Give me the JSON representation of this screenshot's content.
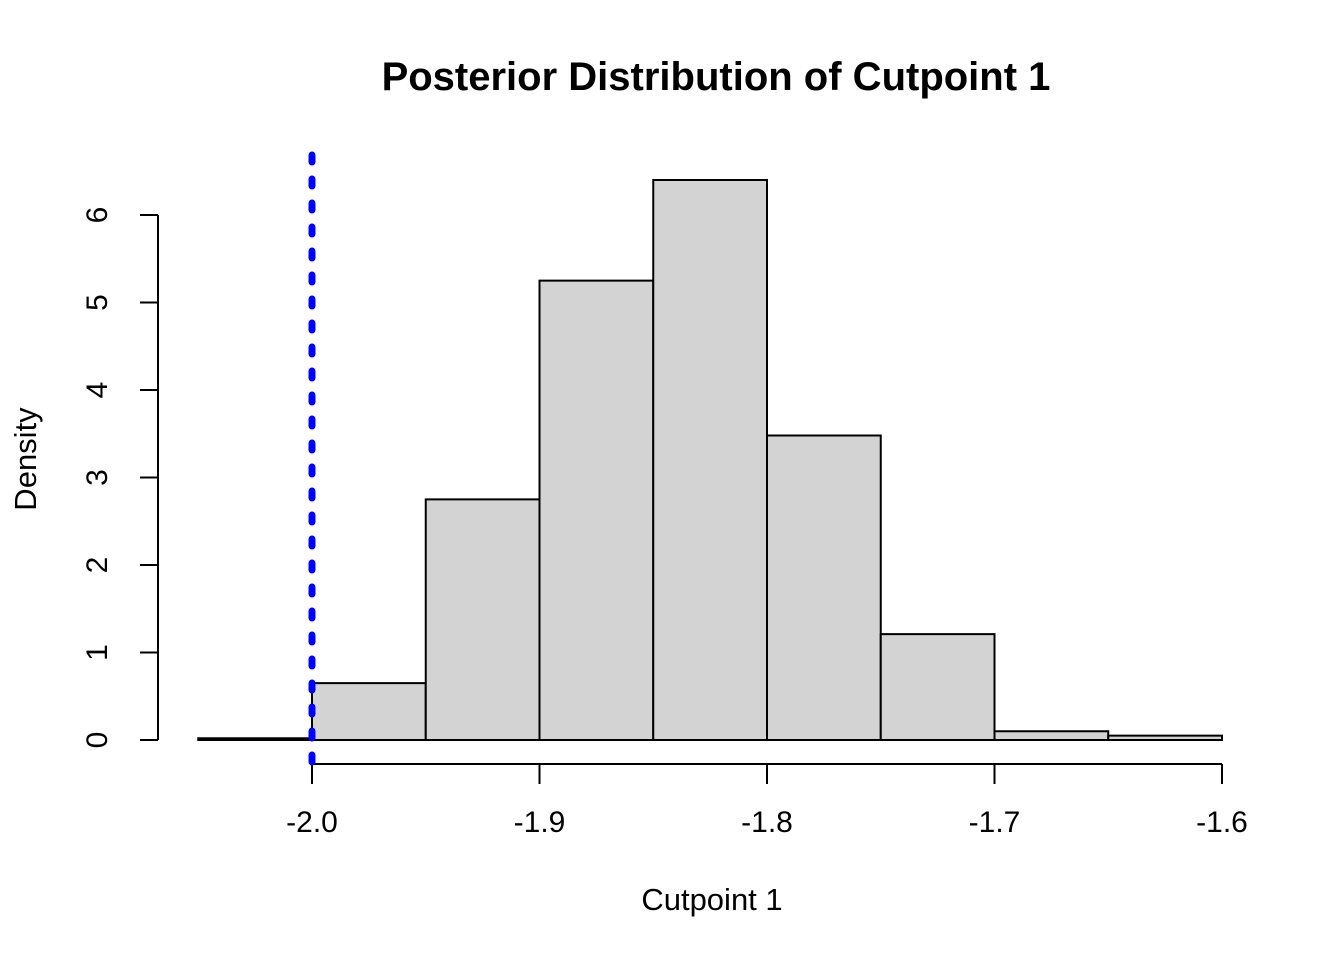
{
  "figure": {
    "background": "#FFFFFF"
  },
  "chart_data": {
    "type": "bar",
    "subtype": "histogram",
    "title": "Posterior Distribution of Cutpoint 1",
    "xlabel": "Cutpoint 1",
    "ylabel": "Density",
    "bin_breaks": [
      -2.05,
      -2.0,
      -1.95,
      -1.9,
      -1.85,
      -1.8,
      -1.75,
      -1.7,
      -1.65,
      -1.6
    ],
    "densities": [
      0.02,
      0.65,
      2.75,
      5.25,
      6.4,
      3.48,
      1.21,
      0.1,
      0.05
    ],
    "x_ticks": {
      "values": [
        -2.0,
        -1.9,
        -1.8,
        -1.7,
        -1.6
      ],
      "labels": [
        "-2.0",
        "-1.9",
        "-1.8",
        "-1.7",
        "-1.6"
      ]
    },
    "y_ticks": {
      "values": [
        0,
        1,
        2,
        3,
        4,
        5,
        6
      ],
      "labels": [
        "0",
        "1",
        "2",
        "3",
        "4",
        "5",
        "6"
      ]
    },
    "xlim": [
      -2.05,
      -1.6
    ],
    "ylim": [
      0,
      6.4
    ],
    "grid": false,
    "legend_position": "none",
    "reference_line": {
      "x": -2.0,
      "orientation": "vertical",
      "style": "dotted",
      "color": "#0000FF",
      "width": 7
    },
    "style": {
      "bar_fill": "#D3D3D3",
      "bar_border": "#000000",
      "axis_color": "#000000",
      "text_color": "#000000"
    }
  }
}
